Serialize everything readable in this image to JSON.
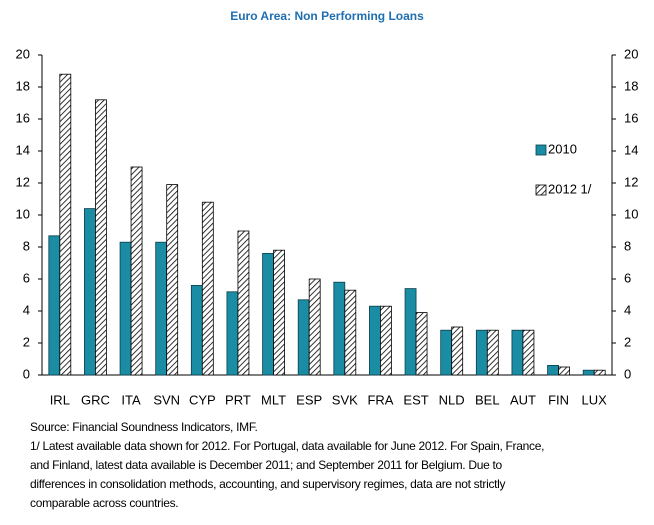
{
  "chart_data": {
    "type": "bar",
    "title": "Euro Area: Non Performing Loans",
    "categories": [
      "IRL",
      "GRC",
      "ITA",
      "SVN",
      "CYP",
      "PRT",
      "MLT",
      "ESP",
      "SVK",
      "FRA",
      "EST",
      "NLD",
      "BEL",
      "AUT",
      "FIN",
      "LUX"
    ],
    "series": [
      {
        "name": "2010",
        "color": "#1a8ca3",
        "values": [
          8.7,
          10.4,
          8.3,
          8.3,
          5.6,
          5.2,
          7.6,
          4.7,
          5.8,
          4.3,
          5.4,
          2.8,
          2.8,
          2.8,
          0.6,
          0.3
        ]
      },
      {
        "name": "2012 1/",
        "color": "#000000",
        "hatch": true,
        "values": [
          18.8,
          17.2,
          13.0,
          11.9,
          10.8,
          9.0,
          7.8,
          6.0,
          5.3,
          4.3,
          3.9,
          3.0,
          2.8,
          2.8,
          0.5,
          0.3
        ]
      }
    ],
    "ylim": [
      0,
      20
    ],
    "yticks": [
      0,
      2,
      4,
      6,
      8,
      10,
      12,
      14,
      16,
      18,
      20
    ],
    "y2lim": [
      0,
      20
    ],
    "y2ticks": [
      0,
      2,
      4,
      6,
      8,
      10,
      12,
      14,
      16,
      18,
      20
    ],
    "notes": [
      "Source: Financial Soundness Indicators, IMF.",
      "1/ Latest available data shown for 2012. For Portugal, data available for June 2012. For Spain, France,",
      "and Finland, latest data available is December 2011; and September 2011 for Belgium. Due to",
      "differences in consolidation methods, accounting, and supervisory regimes, data are not strictly",
      "comparable across countries."
    ]
  }
}
